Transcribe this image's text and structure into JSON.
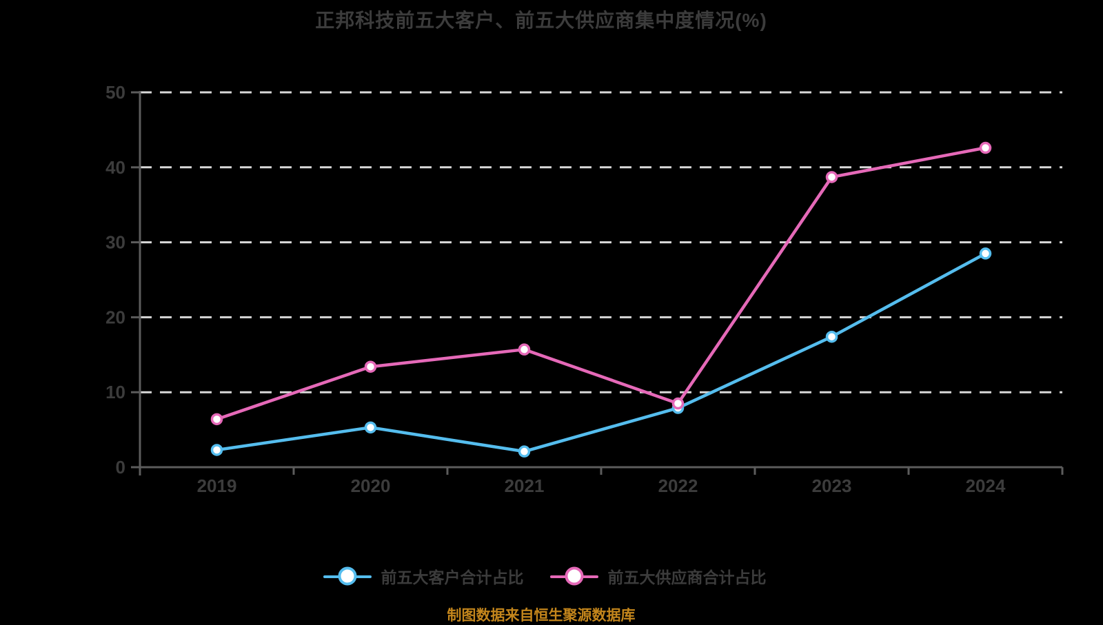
{
  "title": "正邦科技前五大客户、前五大供应商集中度情况(%)",
  "source_note": "制图数据来自恒生聚源数据库",
  "colors": {
    "background": "#000000",
    "title_text": "#3c3c3c",
    "tick_text": "#3c3c3c",
    "legend_text": "#3c3c3c",
    "axis": "#5c5c5c",
    "gridline": "#d9d9d9",
    "marker_fill": "#ffffff",
    "source_text": "#c4861c"
  },
  "chart_data": {
    "type": "line",
    "title": "正邦科技前五大客户、前五大供应商集中度情况(%)",
    "categories": [
      "2019",
      "2020",
      "2021",
      "2022",
      "2023",
      "2024"
    ],
    "series": [
      {
        "id": "top5-customers",
        "name": "前五大客户合计占比",
        "color": "#55bdee",
        "values": [
          2.3,
          5.3,
          2.1,
          7.9,
          17.4,
          28.5
        ]
      },
      {
        "id": "top5-suppliers",
        "name": "前五大供应商合计占比",
        "color": "#e569b8",
        "values": [
          6.4,
          13.4,
          15.7,
          8.5,
          38.7,
          42.6
        ]
      }
    ],
    "xlabel": "",
    "ylabel": "",
    "ylim": [
      0,
      50
    ],
    "yticks": [
      0,
      10,
      20,
      30,
      40,
      50
    ],
    "grid": "horizontal-dashed",
    "legend_position": "bottom",
    "marker": "circle-white-fill"
  }
}
